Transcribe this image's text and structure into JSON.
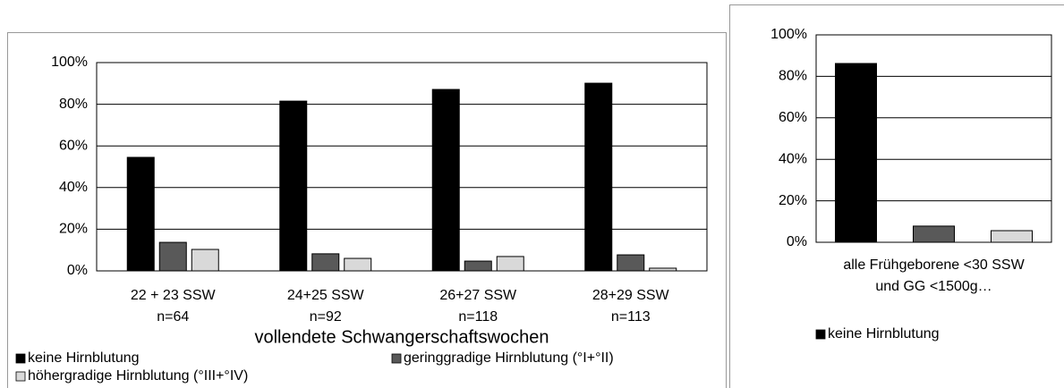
{
  "chart_data": [
    {
      "type": "bar",
      "categories": [
        [
          "22 + 23 SSW",
          "n=64"
        ],
        [
          "24+25 SSW",
          "n=92"
        ],
        [
          "26+27 SSW",
          "n=118"
        ],
        [
          "28+29 SSW",
          "n=113"
        ]
      ],
      "x_label": "vollendete Schwangerschaftswochen",
      "series": [
        {
          "name": "keine Hirnblutung",
          "color": "#000000",
          "values": [
            54.5,
            81.5,
            87.1,
            90.1
          ]
        },
        {
          "name": "geringgradige Hirnblutung  (°I+°II)",
          "color": "#595959",
          "values": [
            13.7,
            8.2,
            4.7,
            7.7
          ]
        },
        {
          "name": "höhergradige Hirnblutung  (°III+°IV)",
          "color": "#d9d9d9",
          "values": [
            10.3,
            6.0,
            6.9,
            1.3
          ]
        }
      ],
      "ylim": [
        0,
        100
      ],
      "yticks": [
        {
          "value": 0,
          "label": "0%"
        },
        {
          "value": 20,
          "label": "20%"
        },
        {
          "value": 40,
          "label": "40%"
        },
        {
          "value": 60,
          "label": "60%"
        },
        {
          "value": 80,
          "label": "80%"
        },
        {
          "value": 100,
          "label": "100%"
        }
      ],
      "grid": true,
      "legend": "bottom"
    },
    {
      "type": "bar",
      "categories": [
        [
          "alle Frühgeborene <30 SSW",
          "und GG <1500g…"
        ]
      ],
      "series": [
        {
          "name": "keine Hirnblutung",
          "color": "#000000",
          "values": [
            86.2
          ]
        },
        {
          "color": "#595959",
          "values": [
            7.8
          ]
        },
        {
          "color": "#d9d9d9",
          "values": [
            5.6
          ]
        }
      ],
      "ylim": [
        0,
        100
      ],
      "yticks": [
        {
          "value": 0,
          "label": "0%"
        },
        {
          "value": 20,
          "label": "20%"
        },
        {
          "value": 40,
          "label": "40%"
        },
        {
          "value": 60,
          "label": "60%"
        },
        {
          "value": 80,
          "label": "80%"
        },
        {
          "value": 100,
          "label": "100%"
        }
      ],
      "grid": true,
      "legend": "bottom"
    }
  ]
}
